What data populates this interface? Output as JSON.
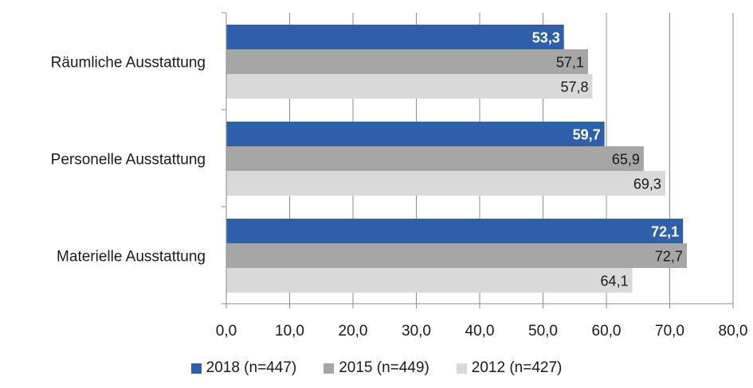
{
  "chart_data": {
    "type": "bar",
    "orientation": "horizontal",
    "categories": [
      "Räumliche Ausstattung",
      "Personelle Ausstattung",
      "Materielle Ausstattung"
    ],
    "series": [
      {
        "name": "2018 (n=447)",
        "color": "#2f5fa8",
        "values": [
          53.3,
          59.7,
          72.1
        ],
        "value_labels": [
          "53,3",
          "59,7",
          "72,1"
        ],
        "label_color": "#ffffff",
        "label_bold": true
      },
      {
        "name": "2015 (n=449)",
        "color": "#a6a6a6",
        "values": [
          57.1,
          65.9,
          72.7
        ],
        "value_labels": [
          "57,1",
          "65,9",
          "72,7"
        ],
        "label_color": "#1a1a1a",
        "label_bold": false
      },
      {
        "name": "2012 (n=427)",
        "color": "#d9d9d9",
        "values": [
          57.8,
          69.3,
          64.1
        ],
        "value_labels": [
          "57,8",
          "69,3",
          "64,1"
        ],
        "label_color": "#1a1a1a",
        "label_bold": false
      }
    ],
    "xlim": [
      0,
      80
    ],
    "x_ticks": [
      0,
      10,
      20,
      30,
      40,
      50,
      60,
      70,
      80
    ],
    "x_tick_labels": [
      "0,0",
      "10,0",
      "20,0",
      "30,0",
      "40,0",
      "50,0",
      "60,0",
      "70,0",
      "80,0"
    ],
    "grid": "vertical",
    "legend_position": "bottom",
    "title": "",
    "xlabel": "",
    "ylabel": ""
  }
}
